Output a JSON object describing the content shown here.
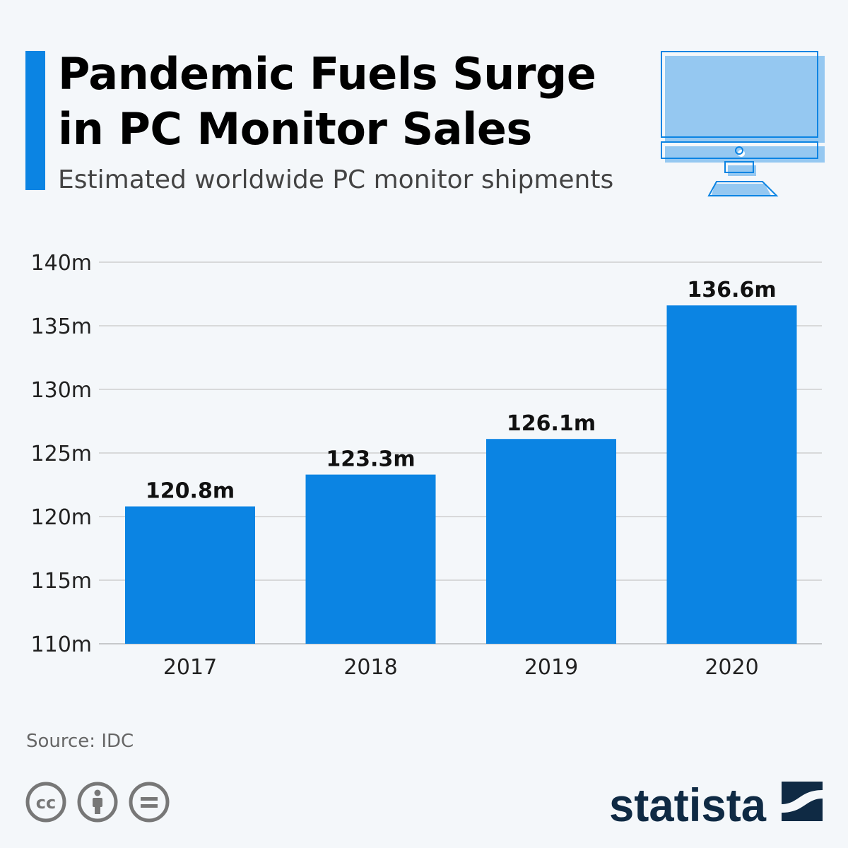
{
  "header": {
    "title_line1": "Pandemic Fuels Surge",
    "title_line2": "in PC Monitor Sales",
    "subtitle": "Estimated worldwide PC monitor shipments",
    "icon": "desktop-monitor-icon"
  },
  "chart_data": {
    "type": "bar",
    "categories": [
      "2017",
      "2018",
      "2019",
      "2020"
    ],
    "values": [
      120.8,
      123.3,
      126.1,
      136.6
    ],
    "data_labels": [
      "120.8m",
      "123.3m",
      "126.1m",
      "136.6m"
    ],
    "unit": "m",
    "ylim": [
      110,
      140
    ],
    "yticks": [
      110,
      115,
      120,
      125,
      130,
      135,
      140
    ],
    "ytick_labels": [
      "110m",
      "115m",
      "120m",
      "125m",
      "130m",
      "135m",
      "140m"
    ],
    "grid": true,
    "bar_color": "#0b84e3"
  },
  "footer": {
    "source": "Source: IDC",
    "license_icons": [
      "cc-icon",
      "attribution-icon",
      "no-derivatives-icon"
    ],
    "brand": "statista"
  }
}
